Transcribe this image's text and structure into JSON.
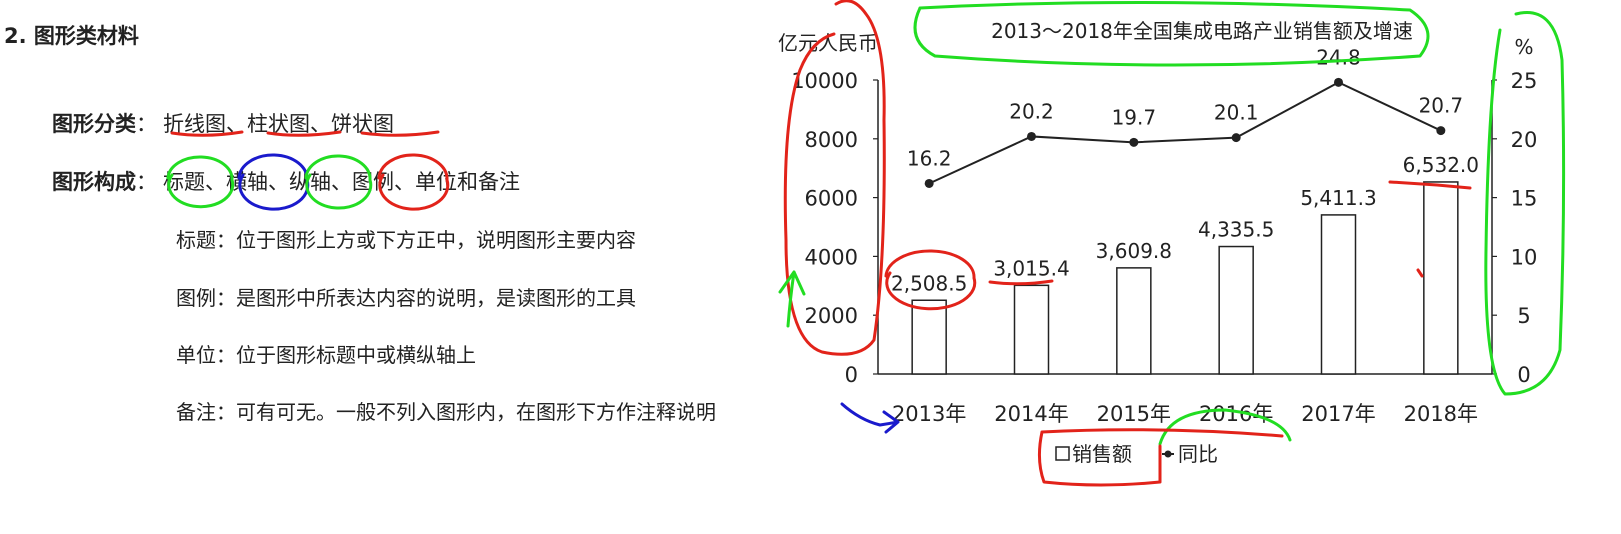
{
  "lecture": {
    "heading": "2. 图形类材料",
    "types_label": "图形分类",
    "types": [
      "折线图",
      "柱状图",
      "饼状图"
    ],
    "sep": "、",
    "parts_label": "图形构成",
    "parts": [
      "标题",
      "横轴",
      "纵轴",
      "图例",
      "单位和备注"
    ],
    "definitions": [
      {
        "term": "标题",
        "text": "位于图形上方或下方正中，说明图形主要内容"
      },
      {
        "term": "图例",
        "text": "是图形中所表达内容的说明，是读图形的工具"
      },
      {
        "term": "单位",
        "text": "位于图形标题中或横纵轴上"
      },
      {
        "term": "备注",
        "text": "可有可无。一般不列入图形内，在图形下方作注释说明"
      }
    ]
  },
  "chart_data": {
    "type": "bar",
    "title": "2013～2018年全国集成电路产业销售额及增速",
    "categories": [
      "2013年",
      "2014年",
      "2015年",
      "2016年",
      "2017年",
      "2018年"
    ],
    "y_left_label": "亿元人民币",
    "y_left_ticks": [
      "0",
      "2000",
      "4000",
      "6000",
      "8000",
      "10000"
    ],
    "y_left_range": [
      0,
      10000
    ],
    "y_right_label": "%",
    "y_right_ticks": [
      "0",
      "5",
      "10",
      "15",
      "20",
      "25"
    ],
    "y_right_range": [
      0,
      25
    ],
    "series": [
      {
        "name": "销售额",
        "kind": "bar",
        "axis": "left",
        "values": [
          2508.5,
          3015.4,
          3609.8,
          4335.5,
          5411.3,
          6532.0
        ],
        "labels": [
          "2,508.5",
          "3,015.4",
          "3,609.8",
          "4,335.5",
          "5,411.3",
          "6,532.0"
        ]
      },
      {
        "name": "同比",
        "kind": "line",
        "axis": "right",
        "values": [
          16.2,
          20.2,
          19.7,
          20.1,
          24.8,
          20.7
        ],
        "labels": [
          "16.2",
          "20.2",
          "19.7",
          "20.1",
          "24.8",
          "20.7"
        ]
      }
    ],
    "legend": {
      "position": "bottom",
      "bar_label": "销售额",
      "line_label": "同比"
    }
  },
  "colors": {
    "red": "#e2231a",
    "green": "#22dd22",
    "blue": "#1a1acc",
    "ink": "#222222"
  }
}
